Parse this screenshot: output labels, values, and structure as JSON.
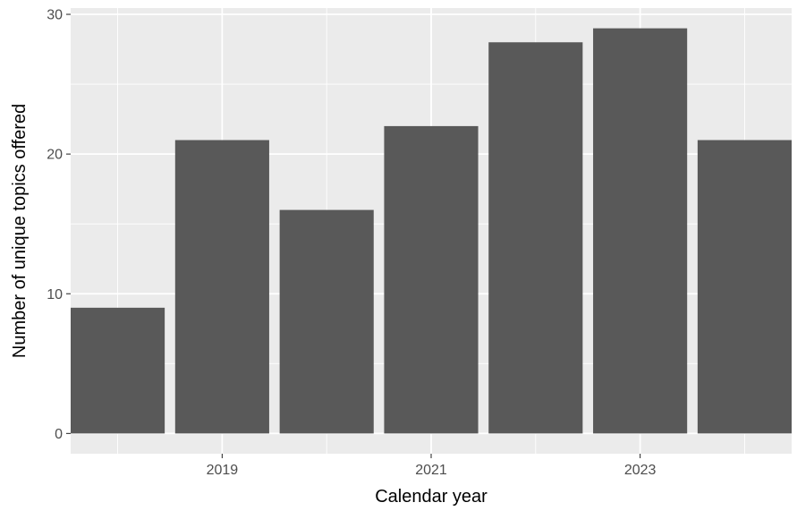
{
  "chart_data": {
    "type": "bar",
    "x": [
      2018,
      2019,
      2020,
      2021,
      2022,
      2023,
      2024
    ],
    "values": [
      9,
      21,
      16,
      22,
      28,
      29,
      21
    ],
    "xlabel": "Calendar year",
    "ylabel": "Number of unique topics offered",
    "x_ticks": [
      "2019",
      "2021",
      "2023"
    ],
    "x_tick_values": [
      2019,
      2021,
      2023
    ],
    "y_ticks": [
      "0",
      "10",
      "20",
      "30"
    ],
    "y_tick_values": [
      0,
      10,
      20,
      30
    ],
    "x_range": [
      2017.55,
      2024.45
    ],
    "ylim": [
      -1.45,
      30.45
    ],
    "grid": true,
    "legend": "none",
    "colors": {
      "bar": "#595959",
      "panel": "#ebebeb",
      "grid_major": "#ffffff",
      "tick_label": "#4d4d4d",
      "tick_mark": "#333333"
    }
  }
}
